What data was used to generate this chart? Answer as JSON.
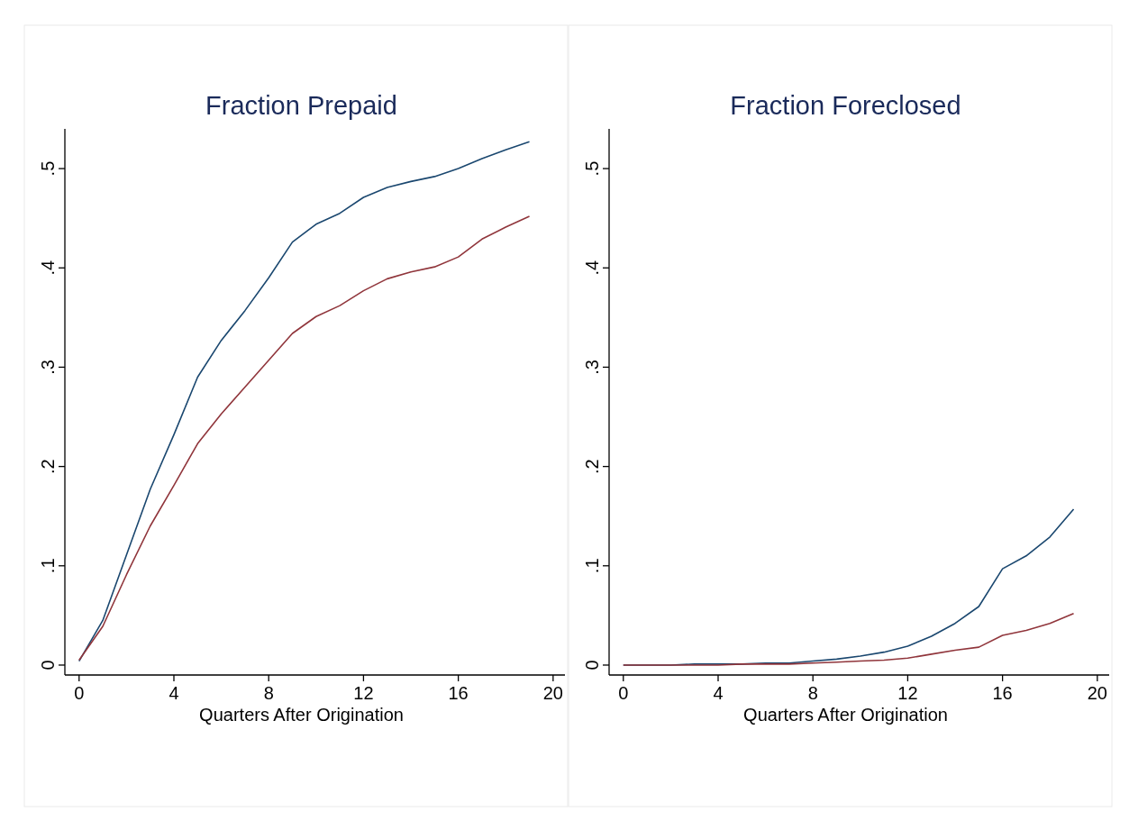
{
  "chart_data": [
    {
      "type": "line",
      "title": "Fraction Prepaid",
      "xlabel": "Quarters After Origination",
      "x": [
        0,
        1,
        2,
        3,
        4,
        5,
        6,
        7,
        8,
        9,
        10,
        11,
        12,
        13,
        14,
        15,
        16,
        17,
        18,
        19
      ],
      "xlim": [
        -0.6,
        20.5
      ],
      "xticks": [
        0,
        4,
        8,
        12,
        16,
        20
      ],
      "ylim": [
        -0.01,
        0.54
      ],
      "yticks": [
        {
          "value": 0,
          "label": "0"
        },
        {
          "value": 0.1,
          "label": ".1"
        },
        {
          "value": 0.2,
          "label": ".2"
        },
        {
          "value": 0.3,
          "label": ".3"
        },
        {
          "value": 0.4,
          "label": ".4"
        },
        {
          "value": 0.5,
          "label": ".5"
        }
      ],
      "series": [
        {
          "color": "#1a476f",
          "values": [
            0.004,
            0.045,
            0.111,
            0.177,
            0.232,
            0.29,
            0.327,
            0.357,
            0.39,
            0.426,
            0.444,
            0.455,
            0.471,
            0.481,
            0.487,
            0.492,
            0.5,
            0.51,
            0.519,
            0.527
          ]
        },
        {
          "color": "#90353b",
          "values": [
            0.005,
            0.039,
            0.091,
            0.14,
            0.181,
            0.223,
            0.253,
            0.28,
            0.307,
            0.334,
            0.351,
            0.362,
            0.377,
            0.389,
            0.396,
            0.401,
            0.411,
            0.429,
            0.441,
            0.452
          ]
        }
      ]
    },
    {
      "type": "line",
      "title": "Fraction Foreclosed",
      "xlabel": "Quarters After Origination",
      "x": [
        0,
        1,
        2,
        3,
        4,
        5,
        6,
        7,
        8,
        9,
        10,
        11,
        12,
        13,
        14,
        15,
        16,
        17,
        18,
        19
      ],
      "xlim": [
        -0.6,
        20.5
      ],
      "xticks": [
        0,
        4,
        8,
        12,
        16,
        20
      ],
      "ylim": [
        -0.01,
        0.54
      ],
      "yticks": [
        {
          "value": 0,
          "label": "0"
        },
        {
          "value": 0.1,
          "label": ".1"
        },
        {
          "value": 0.2,
          "label": ".2"
        },
        {
          "value": 0.3,
          "label": ".3"
        },
        {
          "value": 0.4,
          "label": ".4"
        },
        {
          "value": 0.5,
          "label": ".5"
        }
      ],
      "series": [
        {
          "color": "#1a476f",
          "values": [
            0,
            0,
            0,
            0.001,
            0.001,
            0.001,
            0.002,
            0.002,
            0.004,
            0.006,
            0.009,
            0.013,
            0.019,
            0.029,
            0.042,
            0.059,
            0.097,
            0.11,
            0.129,
            0.157
          ]
        },
        {
          "color": "#90353b",
          "values": [
            0,
            0,
            0,
            0,
            0,
            0.001,
            0.001,
            0.001,
            0.002,
            0.003,
            0.004,
            0.005,
            0.007,
            0.011,
            0.015,
            0.018,
            0.03,
            0.035,
            0.042,
            0.052
          ]
        }
      ]
    }
  ]
}
